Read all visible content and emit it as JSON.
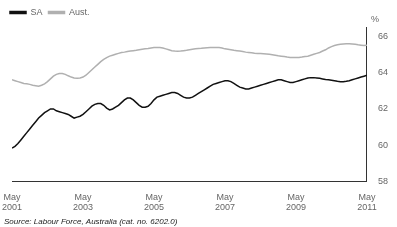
{
  "chart_data": {
    "type": "line",
    "source": "Source: Labour Force, Australia (cat. no. 6202.0)",
    "y_label": "%",
    "categories": [
      "May\n2001",
      null,
      null,
      null,
      null,
      null,
      null,
      null,
      null,
      null,
      null,
      null,
      null,
      null,
      null,
      null,
      null,
      null,
      null,
      null,
      null,
      null,
      null,
      null,
      "May\n2003",
      null,
      null,
      null,
      null,
      null,
      null,
      null,
      null,
      null,
      null,
      null,
      null,
      null,
      null,
      null,
      null,
      null,
      null,
      null,
      null,
      null,
      null,
      null,
      "May\n2005",
      null,
      null,
      null,
      null,
      null,
      null,
      null,
      null,
      null,
      null,
      null,
      null,
      null,
      null,
      null,
      null,
      null,
      null,
      null,
      null,
      null,
      null,
      null,
      "May\n2007",
      null,
      null,
      null,
      null,
      null,
      null,
      null,
      null,
      null,
      null,
      null,
      null,
      null,
      null,
      null,
      null,
      null,
      null,
      null,
      null,
      null,
      null,
      null,
      "May\n2009",
      null,
      null,
      null,
      null,
      null,
      null,
      null,
      null,
      null,
      null,
      null,
      null,
      null,
      null,
      null,
      null,
      null,
      null,
      null,
      null,
      null,
      null,
      null,
      "May\n2011"
    ],
    "xlim": [
      0,
      120
    ],
    "ylim": [
      58,
      66.5
    ],
    "yticks": [
      58,
      60,
      62,
      64,
      66
    ],
    "grid": false,
    "legend": "upper left",
    "series": [
      {
        "name": "Aust.",
        "color": "#b0b0b0",
        "values": [
          63.6,
          63.55,
          63.5,
          63.45,
          63.4,
          63.38,
          63.35,
          63.3,
          63.28,
          63.25,
          63.3,
          63.38,
          63.5,
          63.65,
          63.8,
          63.9,
          63.95,
          63.95,
          63.9,
          63.82,
          63.75,
          63.7,
          63.68,
          63.7,
          63.75,
          63.85,
          64.0,
          64.15,
          64.3,
          64.45,
          64.6,
          64.72,
          64.82,
          64.9,
          64.95,
          65.0,
          65.05,
          65.1,
          65.12,
          65.15,
          65.18,
          65.2,
          65.22,
          65.25,
          65.28,
          65.3,
          65.32,
          65.35,
          65.37,
          65.38,
          65.38,
          65.35,
          65.3,
          65.25,
          65.2,
          65.18,
          65.17,
          65.18,
          65.2,
          65.22,
          65.25,
          65.28,
          65.3,
          65.32,
          65.33,
          65.35,
          65.36,
          65.37,
          65.38,
          65.38,
          65.37,
          65.35,
          65.3,
          65.28,
          65.25,
          65.22,
          65.2,
          65.18,
          65.15,
          65.12,
          65.1,
          65.08,
          65.06,
          65.05,
          65.04,
          65.03,
          65.02,
          65.0,
          64.98,
          64.95,
          64.92,
          64.9,
          64.88,
          64.85,
          64.83,
          64.82,
          64.82,
          64.83,
          64.85,
          64.88,
          64.9,
          64.95,
          65.0,
          65.05,
          65.1,
          65.18,
          65.25,
          65.35,
          65.42,
          65.48,
          65.52,
          65.55,
          65.57,
          65.58,
          65.58,
          65.57,
          65.55,
          65.52,
          65.5,
          65.48,
          65.5
        ]
      },
      {
        "name": "SA",
        "color": "#111111",
        "values": [
          59.85,
          59.95,
          60.1,
          60.3,
          60.5,
          60.7,
          60.9,
          61.1,
          61.3,
          61.5,
          61.65,
          61.8,
          61.9,
          62.0,
          62.0,
          61.9,
          61.85,
          61.8,
          61.75,
          61.7,
          61.6,
          61.5,
          61.55,
          61.6,
          61.7,
          61.85,
          62.0,
          62.15,
          62.25,
          62.3,
          62.3,
          62.2,
          62.05,
          61.95,
          62.0,
          62.1,
          62.2,
          62.35,
          62.5,
          62.6,
          62.6,
          62.5,
          62.35,
          62.2,
          62.1,
          62.1,
          62.15,
          62.3,
          62.5,
          62.65,
          62.7,
          62.75,
          62.8,
          62.85,
          62.9,
          62.9,
          62.85,
          62.75,
          62.65,
          62.6,
          62.6,
          62.65,
          62.75,
          62.85,
          62.95,
          63.05,
          63.15,
          63.25,
          63.35,
          63.4,
          63.45,
          63.5,
          63.55,
          63.55,
          63.5,
          63.4,
          63.3,
          63.2,
          63.15,
          63.1,
          63.1,
          63.15,
          63.2,
          63.25,
          63.3,
          63.35,
          63.4,
          63.45,
          63.5,
          63.55,
          63.6,
          63.6,
          63.55,
          63.5,
          63.45,
          63.45,
          63.5,
          63.55,
          63.6,
          63.65,
          63.7,
          63.72,
          63.72,
          63.7,
          63.68,
          63.65,
          63.62,
          63.6,
          63.58,
          63.55,
          63.52,
          63.5,
          63.5,
          63.52,
          63.55,
          63.6,
          63.65,
          63.7,
          63.75,
          63.8,
          63.85
        ]
      }
    ]
  }
}
